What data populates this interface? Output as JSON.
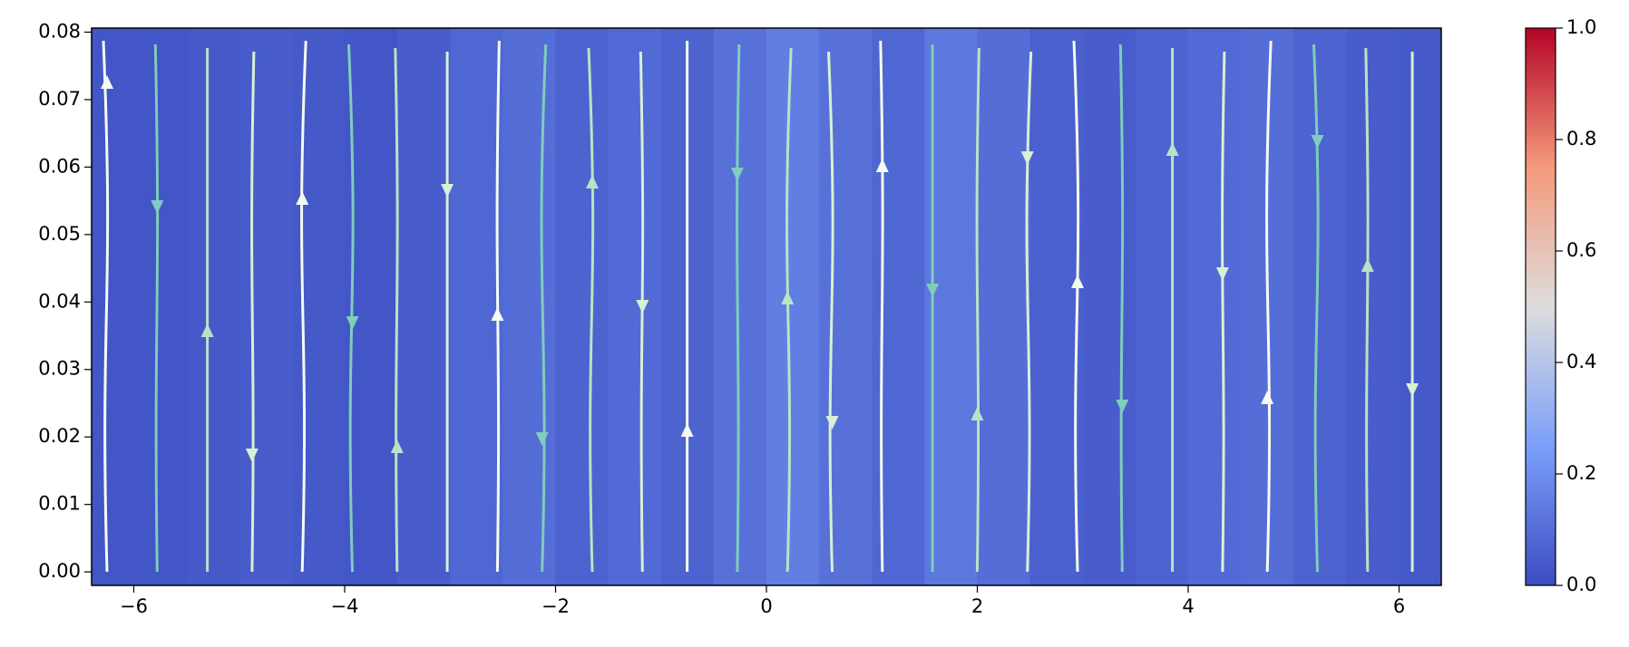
{
  "chart_data": {
    "type": "streamplot",
    "xlim": [
      -6.4,
      6.4
    ],
    "xticks": [
      {
        "value": -6,
        "label": "−6"
      },
      {
        "value": -4,
        "label": "−4"
      },
      {
        "value": -2,
        "label": "−2"
      },
      0,
      2,
      4,
      6
    ],
    "ylim": [
      -0.002,
      0.0806
    ],
    "yticks": [
      {
        "value": 0,
        "label": "0.00"
      },
      {
        "value": 0.01,
        "label": "0.01"
      },
      {
        "value": 0.02,
        "label": "0.02"
      },
      {
        "value": 0.03,
        "label": "0.03"
      },
      {
        "value": 0.04,
        "label": "0.04"
      },
      {
        "value": 0.05,
        "label": "0.05"
      },
      {
        "value": 0.06,
        "label": "0.06"
      },
      {
        "value": 0.07,
        "label": "0.07"
      },
      {
        "value": 0.08,
        "label": "0.08"
      }
    ],
    "heat_x": [
      -6.25,
      -5.75,
      -5.25,
      -4.75,
      -4.25,
      -3.75,
      -3.25,
      -2.75,
      -2.25,
      -1.75,
      -1.25,
      -0.75,
      -0.25,
      0.25,
      0.75,
      1.25,
      1.75,
      2.25,
      2.75,
      3.25,
      3.75,
      4.25,
      4.75,
      5.25,
      5.75,
      6.25
    ],
    "heat_values": [
      0.03,
      0.03,
      0.04,
      0.05,
      0.04,
      0.03,
      0.05,
      0.08,
      0.1,
      0.07,
      0.09,
      0.07,
      0.11,
      0.15,
      0.11,
      0.08,
      0.13,
      0.1,
      0.06,
      0.05,
      0.07,
      0.09,
      0.1,
      0.07,
      0.05,
      0.04
    ],
    "colormap": "coolwarm",
    "clim": [
      0,
      1
    ],
    "cticks": [
      {
        "value": 0,
        "label": "0.0"
      },
      {
        "value": 0.2,
        "label": "0.2"
      },
      {
        "value": 0.4,
        "label": "0.4"
      },
      {
        "value": 0.6,
        "label": "0.6"
      },
      {
        "value": 0.8,
        "label": "0.8"
      },
      {
        "value": 1,
        "label": "1.0"
      }
    ]
  }
}
